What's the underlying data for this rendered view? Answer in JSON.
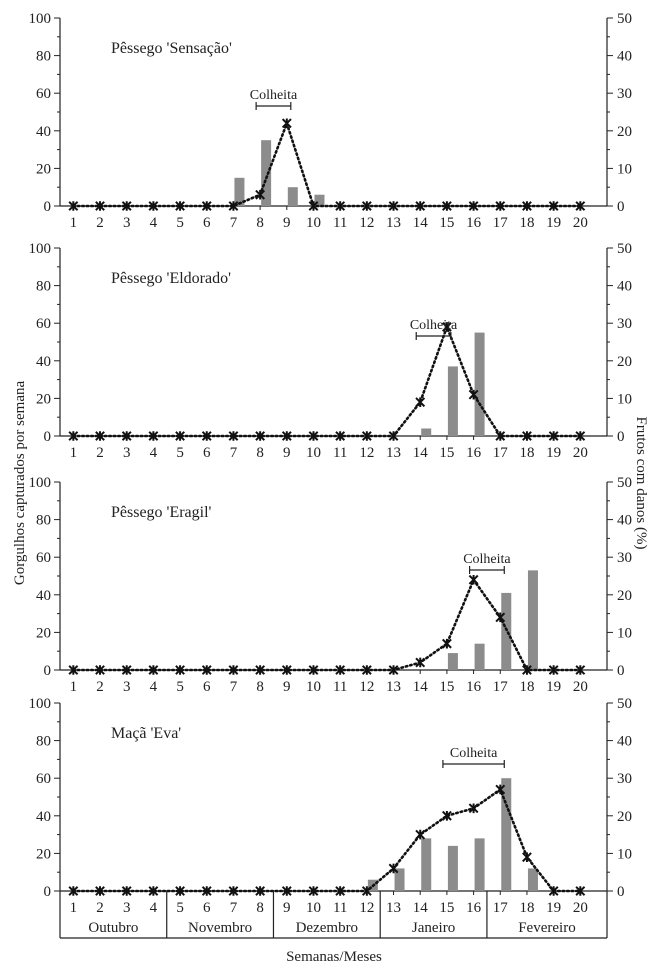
{
  "figure": {
    "ylabel_left": "Gorgulhos capturados por semana",
    "ylabel_right": "Frutos com danos (%)",
    "xlabel": "Semanas/Meses",
    "months": [
      "Outubro",
      "Novembro",
      "Dezembro",
      "Janeiro",
      "Fevereiro"
    ],
    "harvest_label": "Colheita"
  },
  "colors": {
    "bar": "#8c8c8c",
    "line": "#111111",
    "axis": "#222222"
  },
  "chart_data": [
    {
      "type": "bar",
      "title": "Pêssego 'Sensação'",
      "weeks": [
        1,
        2,
        3,
        4,
        5,
        6,
        7,
        8,
        9,
        10,
        11,
        12,
        13,
        14,
        15,
        16,
        17,
        18,
        19,
        20
      ],
      "y_left_ticks": [
        0,
        20,
        40,
        60,
        80,
        100
      ],
      "ylim_left": [
        0,
        100
      ],
      "y_right_ticks": [
        0,
        10,
        20,
        30,
        40,
        50
      ],
      "ylim_right": [
        0,
        50
      ],
      "series": [
        {
          "type": "bar",
          "axis": "left",
          "values": [
            0,
            0,
            0,
            0,
            0,
            0,
            15,
            35,
            10,
            6,
            0,
            0,
            0,
            0,
            0,
            0,
            0,
            0,
            0,
            0
          ]
        },
        {
          "type": "line",
          "axis": "right",
          "marker": "x",
          "values": [
            0,
            0,
            0,
            0,
            0,
            0,
            0,
            3,
            22,
            0,
            0,
            0,
            0,
            0,
            0,
            0,
            0,
            0,
            0,
            0
          ]
        }
      ],
      "harvest": {
        "label": "Colheita",
        "from_week": 8,
        "to_week": 9
      }
    },
    {
      "type": "bar",
      "title": "Pêssego 'Eldorado'",
      "weeks": [
        1,
        2,
        3,
        4,
        5,
        6,
        7,
        8,
        9,
        10,
        11,
        12,
        13,
        14,
        15,
        16,
        17,
        18,
        19,
        20
      ],
      "y_left_ticks": [
        0,
        20,
        40,
        60,
        80,
        100
      ],
      "ylim_left": [
        0,
        100
      ],
      "y_right_ticks": [
        0,
        10,
        20,
        30,
        40,
        50
      ],
      "ylim_right": [
        0,
        50
      ],
      "series": [
        {
          "type": "bar",
          "axis": "left",
          "values": [
            0,
            0,
            0,
            0,
            0,
            0,
            0,
            0,
            0,
            0,
            0,
            0,
            0,
            4,
            37,
            55,
            0,
            0,
            0,
            0
          ]
        },
        {
          "type": "line",
          "axis": "right",
          "marker": "x",
          "values": [
            0,
            0,
            0,
            0,
            0,
            0,
            0,
            0,
            0,
            0,
            0,
            0,
            0,
            9,
            29,
            11,
            0,
            0,
            0,
            0
          ]
        }
      ],
      "harvest": {
        "label": "Colheita",
        "from_week": 14,
        "to_week": 15
      }
    },
    {
      "type": "bar",
      "title": "Pêssego 'Eragil'",
      "weeks": [
        1,
        2,
        3,
        4,
        5,
        6,
        7,
        8,
        9,
        10,
        11,
        12,
        13,
        14,
        15,
        16,
        17,
        18,
        19,
        20
      ],
      "y_left_ticks": [
        0,
        20,
        40,
        60,
        80,
        100
      ],
      "ylim_left": [
        0,
        100
      ],
      "y_right_ticks": [
        0,
        10,
        20,
        30,
        40,
        50
      ],
      "ylim_right": [
        0,
        50
      ],
      "series": [
        {
          "type": "bar",
          "axis": "left",
          "values": [
            0,
            0,
            0,
            0,
            0,
            0,
            0,
            0,
            0,
            0,
            0,
            0,
            0,
            0,
            9,
            14,
            41,
            53,
            0,
            0
          ]
        },
        {
          "type": "line",
          "axis": "right",
          "marker": "x",
          "values": [
            0,
            0,
            0,
            0,
            0,
            0,
            0,
            0,
            0,
            0,
            0,
            0,
            0,
            2,
            7,
            24,
            14,
            0,
            0,
            0
          ]
        }
      ],
      "harvest": {
        "label": "Colheita",
        "from_week": 16,
        "to_week": 17
      }
    },
    {
      "type": "bar",
      "title": "Maçã 'Eva'",
      "weeks": [
        1,
        2,
        3,
        4,
        5,
        6,
        7,
        8,
        9,
        10,
        11,
        12,
        13,
        14,
        15,
        16,
        17,
        18,
        19,
        20
      ],
      "y_left_ticks": [
        0,
        20,
        40,
        60,
        80,
        100
      ],
      "ylim_left": [
        0,
        100
      ],
      "y_right_ticks": [
        0,
        10,
        20,
        30,
        40,
        50
      ],
      "ylim_right": [
        0,
        50
      ],
      "series": [
        {
          "type": "bar",
          "axis": "left",
          "values": [
            0,
            0,
            0,
            0,
            0,
            0,
            0,
            0,
            0,
            0,
            0,
            6,
            12,
            28,
            24,
            28,
            60,
            12,
            0,
            0
          ]
        },
        {
          "type": "line",
          "axis": "right",
          "marker": "x",
          "values": [
            0,
            0,
            0,
            0,
            0,
            0,
            0,
            0,
            0,
            0,
            0,
            0,
            6,
            15,
            20,
            22,
            27,
            9,
            0,
            0
          ]
        }
      ],
      "harvest": {
        "label": "Colheita",
        "from_week": 15,
        "to_week": 17
      }
    }
  ]
}
